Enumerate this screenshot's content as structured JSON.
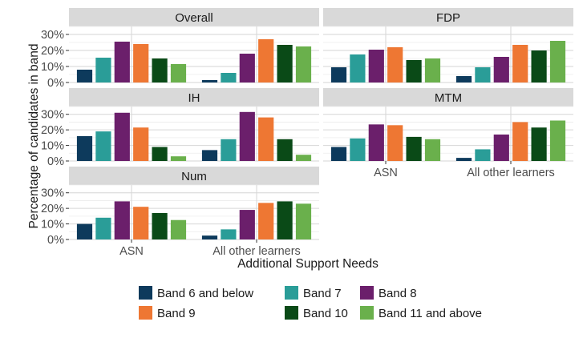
{
  "chart_data": {
    "type": "bar",
    "xlabel": "Additional Support Needs",
    "ylabel": "Percentage of candidates in band",
    "ylim": [
      0,
      35
    ],
    "y_ticks": [
      0,
      10,
      20,
      30
    ],
    "y_tick_labels": [
      "0%",
      "10%",
      "20%",
      "30%"
    ],
    "categories": [
      "ASN",
      "All other learners"
    ],
    "grid": true,
    "legend_position": "bottom",
    "colors": {
      "Band 6 and below": "#0d3a5c",
      "Band 7": "#2a9d98",
      "Band 8": "#6b1f6b",
      "Band 9": "#ee7733",
      "Band 10": "#0a4a17",
      "Band 11 and above": "#6ab04c"
    },
    "legend": [
      "Band 6 and below",
      "Band 7",
      "Band 8",
      "Band 9",
      "Band 10",
      "Band 11 and above"
    ],
    "panels": [
      {
        "title": "Overall",
        "series": [
          {
            "name": "Band 6 and below",
            "values": [
              8,
              1.5
            ]
          },
          {
            "name": "Band 7",
            "values": [
              15.5,
              6
            ]
          },
          {
            "name": "Band 8",
            "values": [
              25.5,
              18
            ]
          },
          {
            "name": "Band 9",
            "values": [
              24,
              27
            ]
          },
          {
            "name": "Band 10",
            "values": [
              15,
              23.5
            ]
          },
          {
            "name": "Band 11 and above",
            "values": [
              11.5,
              22.5
            ]
          }
        ]
      },
      {
        "title": "FDP",
        "series": [
          {
            "name": "Band 6 and below",
            "values": [
              9.5,
              4
            ]
          },
          {
            "name": "Band 7",
            "values": [
              17.5,
              9.5
            ]
          },
          {
            "name": "Band 8",
            "values": [
              20.5,
              16
            ]
          },
          {
            "name": "Band 9",
            "values": [
              22,
              23.5
            ]
          },
          {
            "name": "Band 10",
            "values": [
              14,
              20
            ]
          },
          {
            "name": "Band 11 and above",
            "values": [
              15,
              26
            ]
          }
        ]
      },
      {
        "title": "IH",
        "series": [
          {
            "name": "Band 6 and below",
            "values": [
              16,
              7
            ]
          },
          {
            "name": "Band 7",
            "values": [
              19,
              14
            ]
          },
          {
            "name": "Band 8",
            "values": [
              31,
              31.5
            ]
          },
          {
            "name": "Band 9",
            "values": [
              21.5,
              28
            ]
          },
          {
            "name": "Band 10",
            "values": [
              9,
              14
            ]
          },
          {
            "name": "Band 11 and above",
            "values": [
              3,
              4
            ]
          }
        ]
      },
      {
        "title": "MTM",
        "series": [
          {
            "name": "Band 6 and below",
            "values": [
              9,
              2
            ]
          },
          {
            "name": "Band 7",
            "values": [
              14.5,
              7.5
            ]
          },
          {
            "name": "Band 8",
            "values": [
              23.5,
              17
            ]
          },
          {
            "name": "Band 9",
            "values": [
              23,
              25
            ]
          },
          {
            "name": "Band 10",
            "values": [
              15.5,
              21.5
            ]
          },
          {
            "name": "Band 11 and above",
            "values": [
              14,
              26
            ]
          }
        ]
      },
      {
        "title": "Num",
        "series": [
          {
            "name": "Band 6 and below",
            "values": [
              10,
              2.5
            ]
          },
          {
            "name": "Band 7",
            "values": [
              14,
              6.5
            ]
          },
          {
            "name": "Band 8",
            "values": [
              24.5,
              19
            ]
          },
          {
            "name": "Band 9",
            "values": [
              21,
              23.5
            ]
          },
          {
            "name": "Band 10",
            "values": [
              17,
              24.5
            ]
          },
          {
            "name": "Band 11 and above",
            "values": [
              12.5,
              23
            ]
          }
        ]
      }
    ]
  }
}
